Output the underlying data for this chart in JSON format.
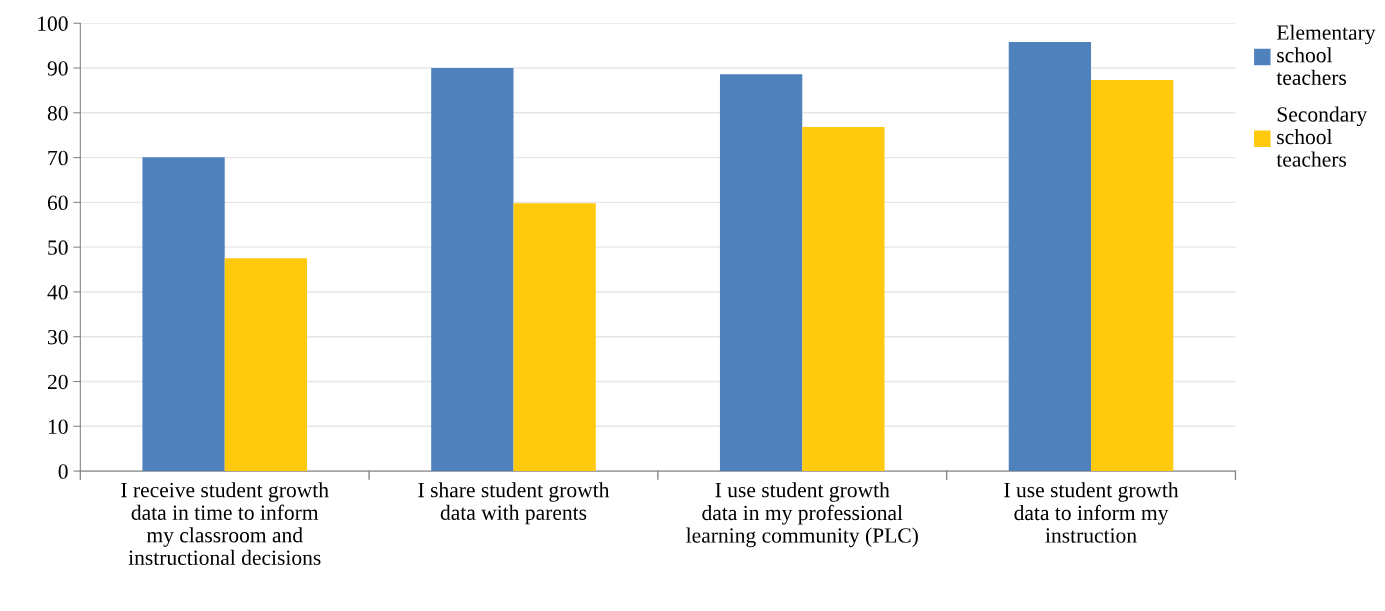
{
  "chart_data": {
    "type": "bar",
    "categories": [
      "I receive student growth data in time to inform my classroom and instructional decisions",
      "I share student growth data with parents",
      "I use student growth data in my professional learning community (PLC)",
      "I use student growth data to inform my instruction"
    ],
    "series": [
      {
        "name": "Elementary school teachers",
        "color": "#4f81bd",
        "values": [
          70.1,
          90.0,
          88.6,
          95.8
        ]
      },
      {
        "name": "Secondary school teachers",
        "color": "#ffc90e",
        "values": [
          47.5,
          59.8,
          76.8,
          87.3
        ]
      }
    ],
    "ylim": [
      0,
      100
    ],
    "yticks": [
      0,
      10,
      20,
      30,
      40,
      50,
      60,
      70,
      80,
      90,
      100
    ],
    "grid": "y",
    "legend": "top right"
  }
}
